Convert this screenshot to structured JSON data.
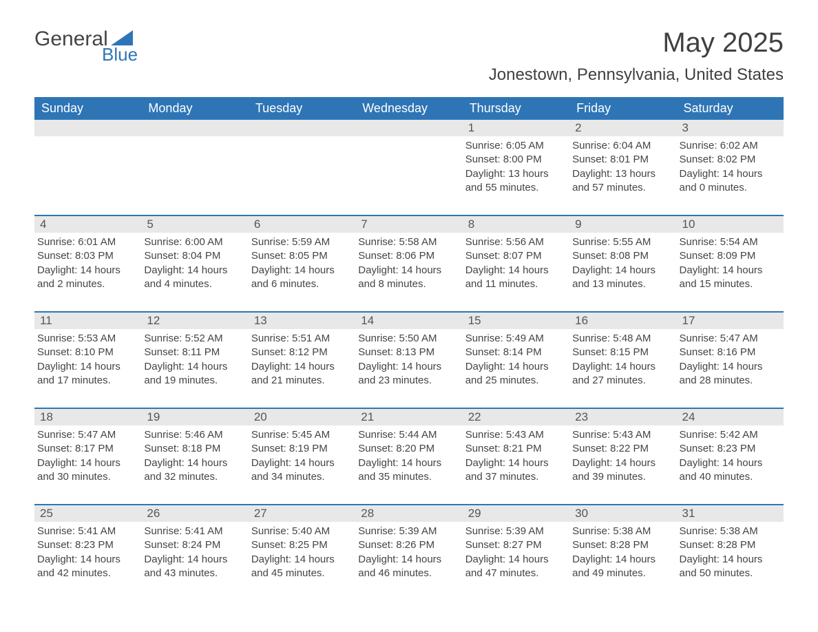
{
  "logo": {
    "main_text": "General",
    "sub_text": "Blue",
    "triangle_color": "#2e75b6",
    "main_color": "#444444",
    "sub_color": "#2e75b6"
  },
  "title": "May 2025",
  "location": "Jonestown, Pennsylvania, United States",
  "colors": {
    "header_bg": "#2e75b6",
    "header_text": "#ffffff",
    "day_header_bg": "#e8e8e8",
    "body_text": "#444444",
    "row_border": "#2e75b6",
    "page_bg": "#ffffff"
  },
  "fonts": {
    "title_size": 40,
    "location_size": 24,
    "header_size": 18,
    "day_number_size": 17,
    "body_size": 15
  },
  "day_headers": [
    "Sunday",
    "Monday",
    "Tuesday",
    "Wednesday",
    "Thursday",
    "Friday",
    "Saturday"
  ],
  "weeks": [
    [
      {
        "day": "",
        "sunrise": "",
        "sunset": "",
        "daylight": ""
      },
      {
        "day": "",
        "sunrise": "",
        "sunset": "",
        "daylight": ""
      },
      {
        "day": "",
        "sunrise": "",
        "sunset": "",
        "daylight": ""
      },
      {
        "day": "",
        "sunrise": "",
        "sunset": "",
        "daylight": ""
      },
      {
        "day": "1",
        "sunrise": "Sunrise: 6:05 AM",
        "sunset": "Sunset: 8:00 PM",
        "daylight": "Daylight: 13 hours and 55 minutes."
      },
      {
        "day": "2",
        "sunrise": "Sunrise: 6:04 AM",
        "sunset": "Sunset: 8:01 PM",
        "daylight": "Daylight: 13 hours and 57 minutes."
      },
      {
        "day": "3",
        "sunrise": "Sunrise: 6:02 AM",
        "sunset": "Sunset: 8:02 PM",
        "daylight": "Daylight: 14 hours and 0 minutes."
      }
    ],
    [
      {
        "day": "4",
        "sunrise": "Sunrise: 6:01 AM",
        "sunset": "Sunset: 8:03 PM",
        "daylight": "Daylight: 14 hours and 2 minutes."
      },
      {
        "day": "5",
        "sunrise": "Sunrise: 6:00 AM",
        "sunset": "Sunset: 8:04 PM",
        "daylight": "Daylight: 14 hours and 4 minutes."
      },
      {
        "day": "6",
        "sunrise": "Sunrise: 5:59 AM",
        "sunset": "Sunset: 8:05 PM",
        "daylight": "Daylight: 14 hours and 6 minutes."
      },
      {
        "day": "7",
        "sunrise": "Sunrise: 5:58 AM",
        "sunset": "Sunset: 8:06 PM",
        "daylight": "Daylight: 14 hours and 8 minutes."
      },
      {
        "day": "8",
        "sunrise": "Sunrise: 5:56 AM",
        "sunset": "Sunset: 8:07 PM",
        "daylight": "Daylight: 14 hours and 11 minutes."
      },
      {
        "day": "9",
        "sunrise": "Sunrise: 5:55 AM",
        "sunset": "Sunset: 8:08 PM",
        "daylight": "Daylight: 14 hours and 13 minutes."
      },
      {
        "day": "10",
        "sunrise": "Sunrise: 5:54 AM",
        "sunset": "Sunset: 8:09 PM",
        "daylight": "Daylight: 14 hours and 15 minutes."
      }
    ],
    [
      {
        "day": "11",
        "sunrise": "Sunrise: 5:53 AM",
        "sunset": "Sunset: 8:10 PM",
        "daylight": "Daylight: 14 hours and 17 minutes."
      },
      {
        "day": "12",
        "sunrise": "Sunrise: 5:52 AM",
        "sunset": "Sunset: 8:11 PM",
        "daylight": "Daylight: 14 hours and 19 minutes."
      },
      {
        "day": "13",
        "sunrise": "Sunrise: 5:51 AM",
        "sunset": "Sunset: 8:12 PM",
        "daylight": "Daylight: 14 hours and 21 minutes."
      },
      {
        "day": "14",
        "sunrise": "Sunrise: 5:50 AM",
        "sunset": "Sunset: 8:13 PM",
        "daylight": "Daylight: 14 hours and 23 minutes."
      },
      {
        "day": "15",
        "sunrise": "Sunrise: 5:49 AM",
        "sunset": "Sunset: 8:14 PM",
        "daylight": "Daylight: 14 hours and 25 minutes."
      },
      {
        "day": "16",
        "sunrise": "Sunrise: 5:48 AM",
        "sunset": "Sunset: 8:15 PM",
        "daylight": "Daylight: 14 hours and 27 minutes."
      },
      {
        "day": "17",
        "sunrise": "Sunrise: 5:47 AM",
        "sunset": "Sunset: 8:16 PM",
        "daylight": "Daylight: 14 hours and 28 minutes."
      }
    ],
    [
      {
        "day": "18",
        "sunrise": "Sunrise: 5:47 AM",
        "sunset": "Sunset: 8:17 PM",
        "daylight": "Daylight: 14 hours and 30 minutes."
      },
      {
        "day": "19",
        "sunrise": "Sunrise: 5:46 AM",
        "sunset": "Sunset: 8:18 PM",
        "daylight": "Daylight: 14 hours and 32 minutes."
      },
      {
        "day": "20",
        "sunrise": "Sunrise: 5:45 AM",
        "sunset": "Sunset: 8:19 PM",
        "daylight": "Daylight: 14 hours and 34 minutes."
      },
      {
        "day": "21",
        "sunrise": "Sunrise: 5:44 AM",
        "sunset": "Sunset: 8:20 PM",
        "daylight": "Daylight: 14 hours and 35 minutes."
      },
      {
        "day": "22",
        "sunrise": "Sunrise: 5:43 AM",
        "sunset": "Sunset: 8:21 PM",
        "daylight": "Daylight: 14 hours and 37 minutes."
      },
      {
        "day": "23",
        "sunrise": "Sunrise: 5:43 AM",
        "sunset": "Sunset: 8:22 PM",
        "daylight": "Daylight: 14 hours and 39 minutes."
      },
      {
        "day": "24",
        "sunrise": "Sunrise: 5:42 AM",
        "sunset": "Sunset: 8:23 PM",
        "daylight": "Daylight: 14 hours and 40 minutes."
      }
    ],
    [
      {
        "day": "25",
        "sunrise": "Sunrise: 5:41 AM",
        "sunset": "Sunset: 8:23 PM",
        "daylight": "Daylight: 14 hours and 42 minutes."
      },
      {
        "day": "26",
        "sunrise": "Sunrise: 5:41 AM",
        "sunset": "Sunset: 8:24 PM",
        "daylight": "Daylight: 14 hours and 43 minutes."
      },
      {
        "day": "27",
        "sunrise": "Sunrise: 5:40 AM",
        "sunset": "Sunset: 8:25 PM",
        "daylight": "Daylight: 14 hours and 45 minutes."
      },
      {
        "day": "28",
        "sunrise": "Sunrise: 5:39 AM",
        "sunset": "Sunset: 8:26 PM",
        "daylight": "Daylight: 14 hours and 46 minutes."
      },
      {
        "day": "29",
        "sunrise": "Sunrise: 5:39 AM",
        "sunset": "Sunset: 8:27 PM",
        "daylight": "Daylight: 14 hours and 47 minutes."
      },
      {
        "day": "30",
        "sunrise": "Sunrise: 5:38 AM",
        "sunset": "Sunset: 8:28 PM",
        "daylight": "Daylight: 14 hours and 49 minutes."
      },
      {
        "day": "31",
        "sunrise": "Sunrise: 5:38 AM",
        "sunset": "Sunset: 8:28 PM",
        "daylight": "Daylight: 14 hours and 50 minutes."
      }
    ]
  ]
}
